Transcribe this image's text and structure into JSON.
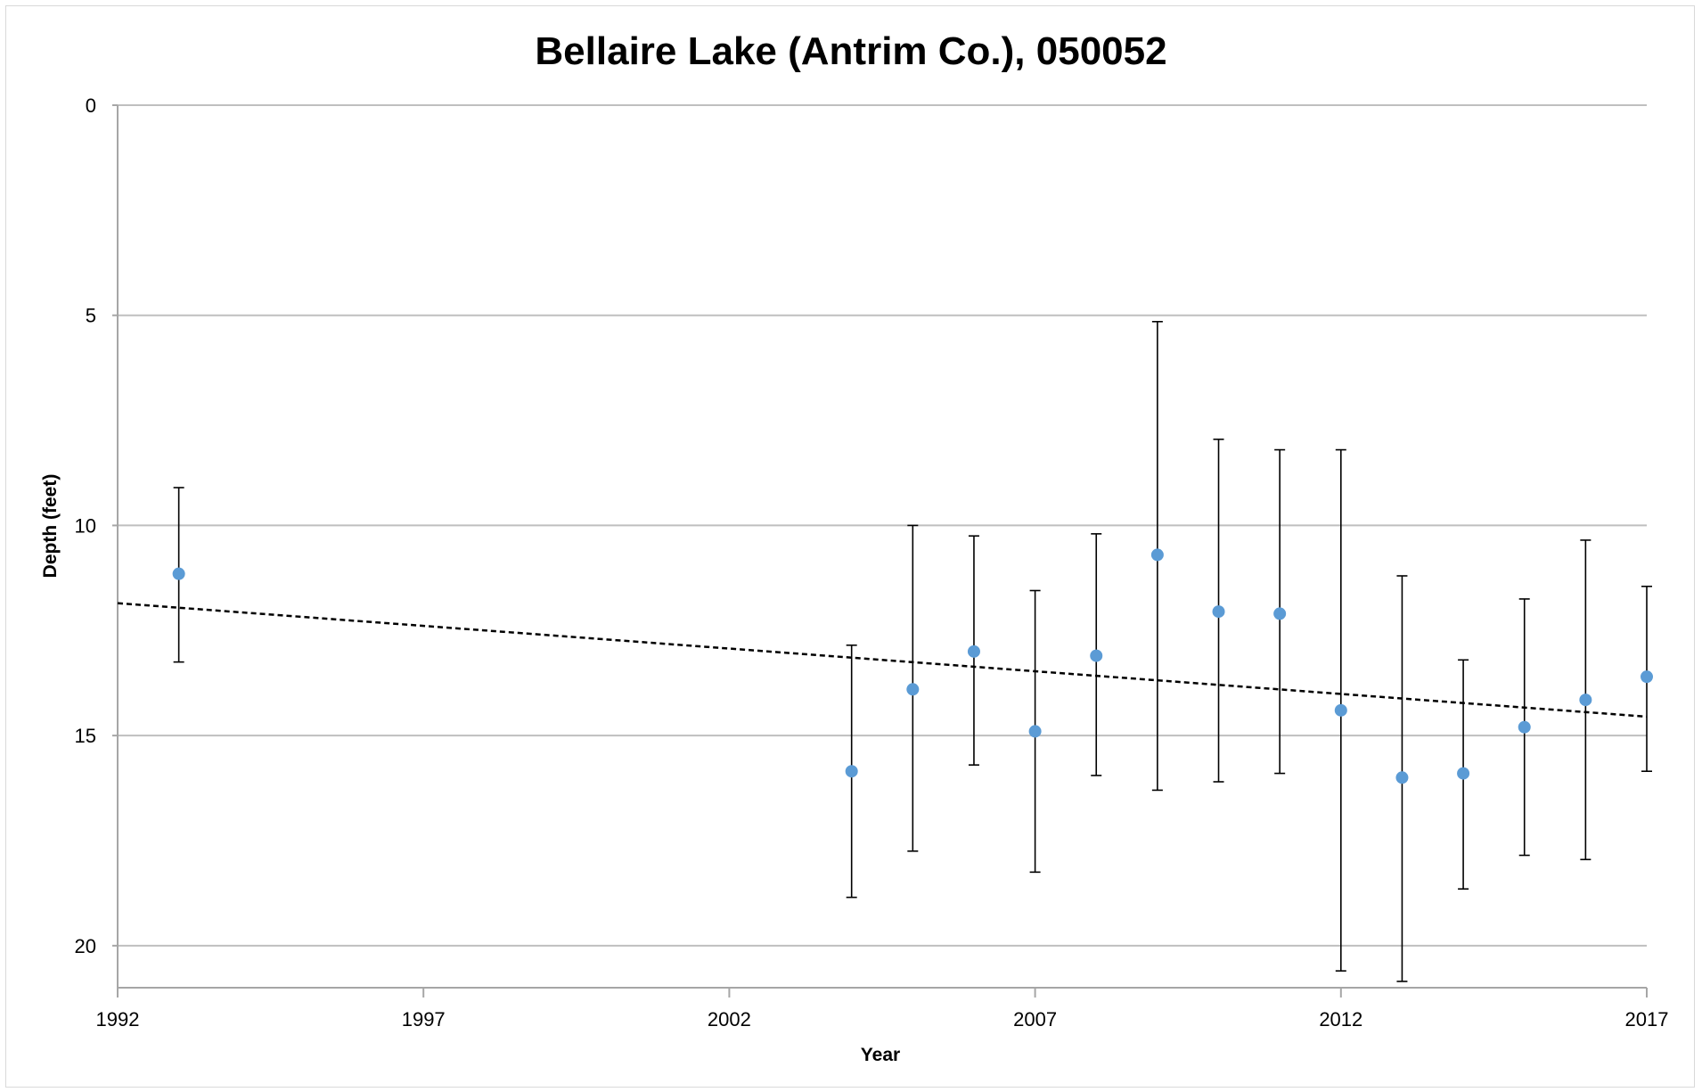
{
  "chart_data": {
    "type": "scatter",
    "title": "Bellaire Lake (Antrim Co.), 050052",
    "xlabel": "Year",
    "ylabel": "Depth (feet)",
    "xlim": [
      1992,
      2017
    ],
    "ylim": [
      0,
      21
    ],
    "y_inverted": true,
    "x_ticks": [
      1992,
      1997,
      2002,
      2007,
      2012,
      2017
    ],
    "y_ticks": [
      0,
      5,
      10,
      15,
      20
    ],
    "grid": "horizontal",
    "legend": "none",
    "series": [
      {
        "marker_color": "#5b9bd5",
        "points": [
          {
            "x": 1993,
            "y": 11.15,
            "y_low": 9.1,
            "y_high": 13.25
          },
          {
            "x": 2004,
            "y": 15.85,
            "y_low": 12.85,
            "y_high": 18.85
          },
          {
            "x": 2005,
            "y": 13.9,
            "y_low": 10.0,
            "y_high": 17.75
          },
          {
            "x": 2006,
            "y": 13.0,
            "y_low": 10.25,
            "y_high": 15.7
          },
          {
            "x": 2007,
            "y": 14.9,
            "y_low": 11.55,
            "y_high": 18.25
          },
          {
            "x": 2008,
            "y": 13.1,
            "y_low": 10.2,
            "y_high": 15.95
          },
          {
            "x": 2009,
            "y": 10.7,
            "y_low": 5.15,
            "y_high": 16.3
          },
          {
            "x": 2010,
            "y": 12.05,
            "y_low": 7.95,
            "y_high": 16.1
          },
          {
            "x": 2011,
            "y": 12.1,
            "y_low": 8.2,
            "y_high": 15.9
          },
          {
            "x": 2012,
            "y": 14.4,
            "y_low": 8.2,
            "y_high": 20.6
          },
          {
            "x": 2013,
            "y": 16.0,
            "y_low": 11.2,
            "y_high": 20.85
          },
          {
            "x": 2014,
            "y": 15.9,
            "y_low": 13.2,
            "y_high": 18.65
          },
          {
            "x": 2015,
            "y": 14.8,
            "y_low": 11.75,
            "y_high": 17.85
          },
          {
            "x": 2016,
            "y": 14.15,
            "y_low": 10.35,
            "y_high": 17.95
          },
          {
            "x": 2017,
            "y": 13.6,
            "y_low": 11.45,
            "y_high": 15.85
          }
        ]
      }
    ],
    "trendline": {
      "type": "linear",
      "style": "dashed",
      "color": "#000000",
      "x_start": 1992,
      "y_start": 11.85,
      "x_end": 2017,
      "y_end": 14.55
    },
    "colors": {
      "marker": "#5b9bd5",
      "gridline": "#bfbfbf",
      "axis": "#a6a6a6",
      "error_bar": "#000000"
    }
  }
}
